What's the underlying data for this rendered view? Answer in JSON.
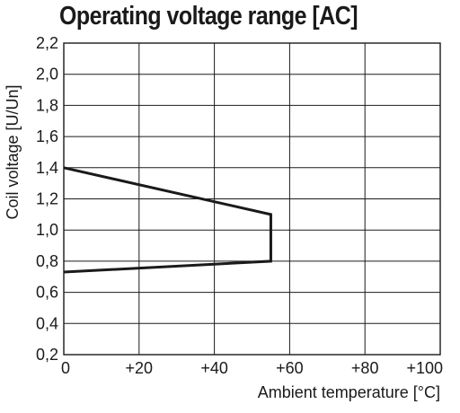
{
  "chart_data": {
    "type": "line",
    "title": "Operating voltage range [AC]",
    "xlabel": "Ambient temperature [°C]",
    "ylabel": "Coil voltage [U/Un]",
    "xlim": [
      0,
      100
    ],
    "ylim": [
      0.2,
      2.2
    ],
    "grid": true,
    "x_ticks": [
      {
        "value": 0,
        "label": "0"
      },
      {
        "value": 20,
        "label": "+20"
      },
      {
        "value": 40,
        "label": "+40"
      },
      {
        "value": 60,
        "label": "+60"
      },
      {
        "value": 80,
        "label": "+80"
      },
      {
        "value": 100,
        "label": "+100"
      }
    ],
    "y_ticks": [
      {
        "value": 0.2,
        "label": "0,2"
      },
      {
        "value": 0.4,
        "label": "0,4"
      },
      {
        "value": 0.6,
        "label": "0,6"
      },
      {
        "value": 0.8,
        "label": "0,8"
      },
      {
        "value": 1.0,
        "label": "1,0"
      },
      {
        "value": 1.2,
        "label": "1,2"
      },
      {
        "value": 1.4,
        "label": "1,4"
      },
      {
        "value": 1.6,
        "label": "1,6"
      },
      {
        "value": 1.8,
        "label": "1,8"
      },
      {
        "value": 2.0,
        "label": "2,0"
      },
      {
        "value": 2.2,
        "label": "2,2"
      }
    ],
    "series": [
      {
        "x": [
          0,
          55,
          55,
          0
        ],
        "y": [
          1.4,
          1.1,
          0.8,
          0.73
        ],
        "color": "#1a1a1a"
      }
    ]
  }
}
